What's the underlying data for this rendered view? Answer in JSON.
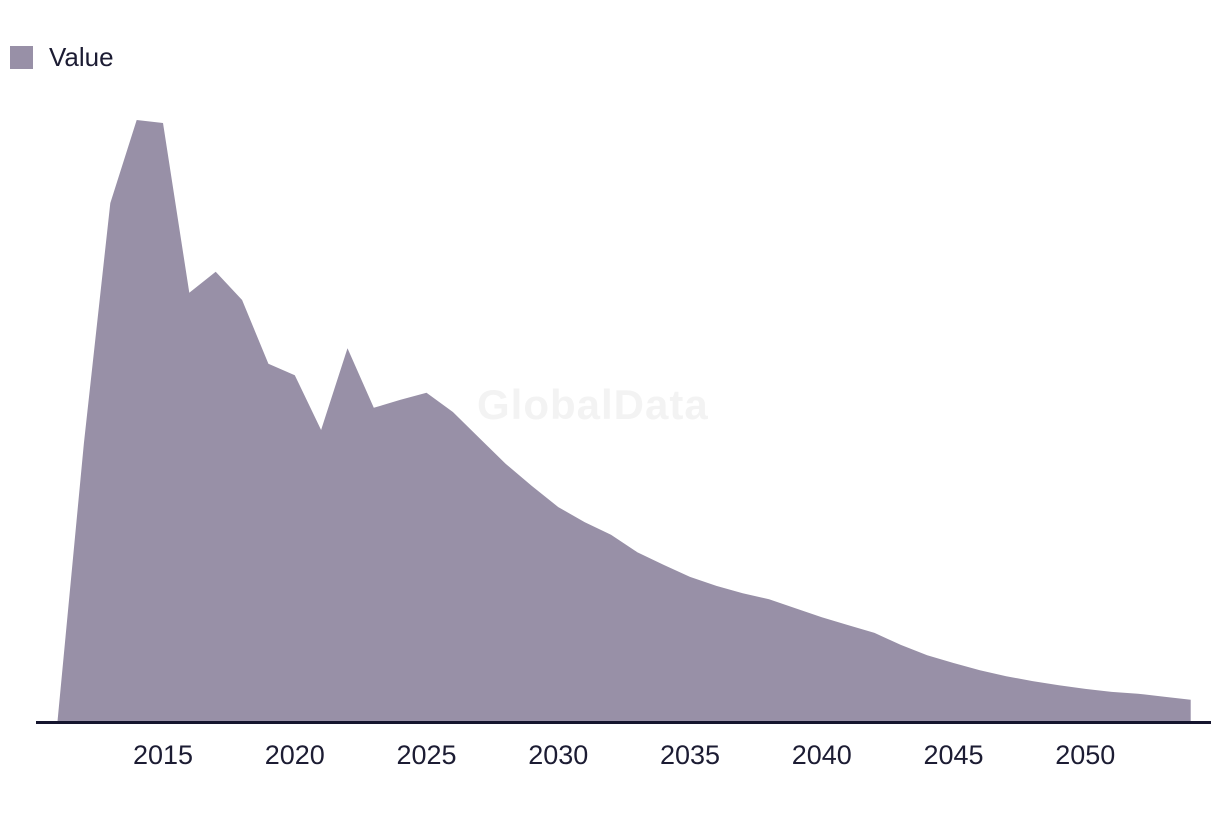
{
  "legend": {
    "label": "Value"
  },
  "watermark": {
    "text": "GlobalData"
  },
  "colors": {
    "area": "#9890a7",
    "axis_line": "#15152e",
    "tick_text": "#1c1c33",
    "watermark": "#f3f3f3",
    "background": "#ffffff"
  },
  "x_axis": {
    "tick_labels": [
      "2015",
      "2020",
      "2025",
      "2030",
      "2035",
      "2040",
      "2045",
      "2050"
    ]
  },
  "chart_data": {
    "type": "area",
    "title": "",
    "xlabel": "",
    "ylabel": "",
    "grid": false,
    "legend_position": "top-left",
    "x": [
      2011,
      2012,
      2013,
      2014,
      2015,
      2016,
      2017,
      2018,
      2019,
      2020,
      2021,
      2022,
      2023,
      2024,
      2025,
      2026,
      2027,
      2028,
      2029,
      2030,
      2031,
      2032,
      2033,
      2034,
      2035,
      2036,
      2037,
      2038,
      2039,
      2040,
      2041,
      2042,
      2043,
      2044,
      2045,
      2046,
      2047,
      2048,
      2049,
      2050,
      2051,
      2052,
      2053,
      2054
    ],
    "series": [
      {
        "name": "Value",
        "values": [
          0.3,
          46.3,
          86.2,
          100,
          99.5,
          71.3,
          74.8,
          70.1,
          59.5,
          57.6,
          48.5,
          62.1,
          52.2,
          53.5,
          54.7,
          51.5,
          47.2,
          42.9,
          39.2,
          35.7,
          33.2,
          31.1,
          28.2,
          26.1,
          24.1,
          22.6,
          21.4,
          20.4,
          18.9,
          17.4,
          16.1,
          14.8,
          12.8,
          11.1,
          9.8,
          8.6,
          7.6,
          6.8,
          6.1,
          5.5,
          5.0,
          4.7,
          4.2,
          3.7
        ]
      }
    ],
    "x_tick_labels": [
      2015,
      2020,
      2025,
      2030,
      2035,
      2040,
      2045,
      2050
    ],
    "xlim": [
      2010.9,
      2054
    ],
    "ylim": [
      0,
      100
    ],
    "units": "relative (percent of 2014 peak; no y-axis displayed, values estimated from area heights)"
  }
}
